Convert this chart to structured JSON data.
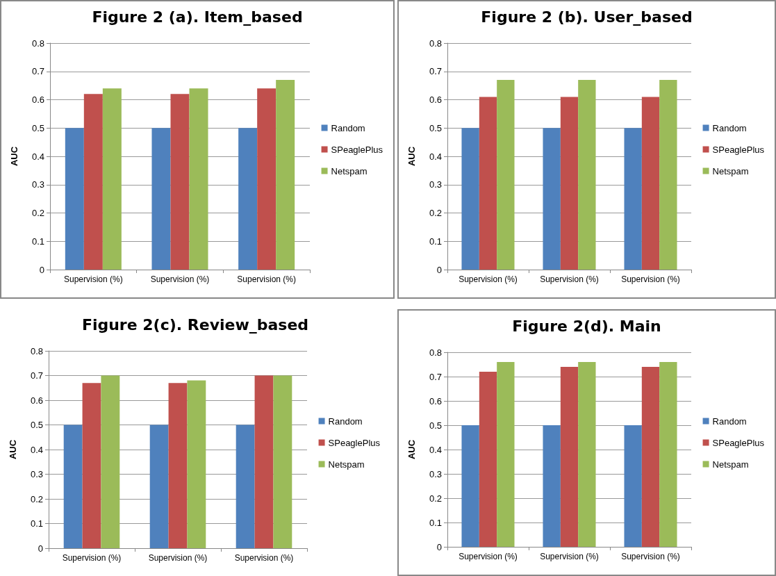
{
  "chart_data": [
    {
      "type": "bar",
      "title": "Figure 2 (a). Item_based",
      "ylabel": "AUC",
      "categories": [
        "Supervision (%)",
        "Supervision (%)",
        "Supervision (%)"
      ],
      "series": [
        {
          "name": "Random",
          "color": "#4f81bd",
          "values": [
            0.5,
            0.5,
            0.5
          ]
        },
        {
          "name": "SPeaglePlus",
          "color": "#c0504d",
          "values": [
            0.62,
            0.62,
            0.64
          ]
        },
        {
          "name": "Netspam",
          "color": "#9bbb59",
          "values": [
            0.64,
            0.64,
            0.67
          ]
        }
      ],
      "ylim": [
        0,
        0.8
      ],
      "yticks": [
        0,
        0.1,
        0.2,
        0.3,
        0.4,
        0.5,
        0.6,
        0.7,
        0.8
      ],
      "grid": "y",
      "legend": "right"
    },
    {
      "type": "bar",
      "title": "Figure 2 (b). User_based",
      "ylabel": "AUC",
      "categories": [
        "Supervision (%)",
        "Supervision (%)",
        "Supervision (%)"
      ],
      "series": [
        {
          "name": "Random",
          "color": "#4f81bd",
          "values": [
            0.5,
            0.5,
            0.5
          ]
        },
        {
          "name": "SPeaglePlus",
          "color": "#c0504d",
          "values": [
            0.61,
            0.61,
            0.61
          ]
        },
        {
          "name": "Netspam",
          "color": "#9bbb59",
          "values": [
            0.67,
            0.67,
            0.67
          ]
        }
      ],
      "ylim": [
        0,
        0.8
      ],
      "yticks": [
        0,
        0.1,
        0.2,
        0.3,
        0.4,
        0.5,
        0.6,
        0.7,
        0.8
      ],
      "grid": "y",
      "legend": "right"
    },
    {
      "type": "bar",
      "title": "Figure 2(c). Review_based",
      "ylabel": "AUC",
      "categories": [
        "Supervision (%)",
        "Supervision (%)",
        "Supervision (%)"
      ],
      "series": [
        {
          "name": "Random",
          "color": "#4f81bd",
          "values": [
            0.5,
            0.5,
            0.5
          ]
        },
        {
          "name": "SPeaglePlus",
          "color": "#c0504d",
          "values": [
            0.67,
            0.67,
            0.7
          ]
        },
        {
          "name": "Netspam",
          "color": "#9bbb59",
          "values": [
            0.7,
            0.68,
            0.7
          ]
        }
      ],
      "ylim": [
        0,
        0.8
      ],
      "yticks": [
        0,
        0.1,
        0.2,
        0.3,
        0.4,
        0.5,
        0.6,
        0.7,
        0.8
      ],
      "grid": "y",
      "legend": "right"
    },
    {
      "type": "bar",
      "title": "Figure 2(d). Main",
      "ylabel": "AUC",
      "categories": [
        "Supervision (%)",
        "Supervision (%)",
        "Supervision (%)"
      ],
      "series": [
        {
          "name": "Random",
          "color": "#4f81bd",
          "values": [
            0.5,
            0.5,
            0.5
          ]
        },
        {
          "name": "SPeaglePlus",
          "color": "#c0504d",
          "values": [
            0.72,
            0.74,
            0.74
          ]
        },
        {
          "name": "Netspam",
          "color": "#9bbb59",
          "values": [
            0.76,
            0.76,
            0.76
          ]
        }
      ],
      "ylim": [
        0,
        0.8
      ],
      "yticks": [
        0,
        0.1,
        0.2,
        0.3,
        0.4,
        0.5,
        0.6,
        0.7,
        0.8
      ],
      "grid": "y",
      "legend": "right"
    }
  ]
}
